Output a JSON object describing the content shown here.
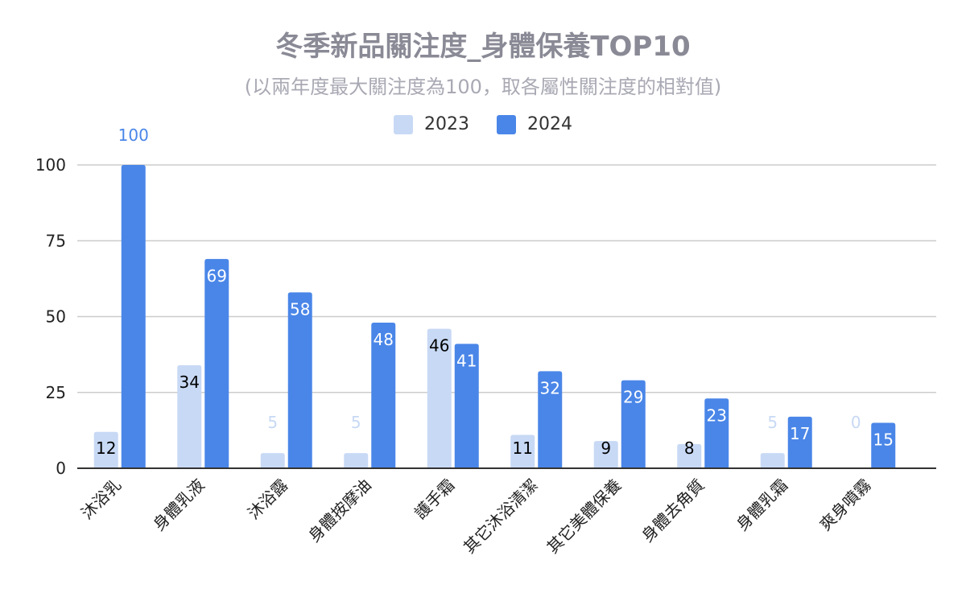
{
  "colors": {
    "y2023": "#c8d9f5",
    "y2024": "#4a86e8",
    "grid": "#cccccc",
    "axis": "#333333"
  },
  "chart_data": {
    "type": "bar",
    "title": "冬季新品關注度_身體保養TOP10",
    "subtitle": "(以兩年度最大關注度為100，取各屬性關注度的相對值)",
    "categories": [
      "沐浴乳",
      "身體乳液",
      "沐浴露",
      "身體按摩油",
      "護手霜",
      "其它沐浴清潔",
      "其它美體保養",
      "身體去角質",
      "身體乳霜",
      "爽身噴霧"
    ],
    "series": [
      {
        "name": "2023",
        "values": [
          12,
          34,
          5,
          5,
          46,
          11,
          9,
          8,
          5,
          0
        ]
      },
      {
        "name": "2024",
        "values": [
          100,
          69,
          58,
          48,
          41,
          32,
          29,
          23,
          17,
          15
        ]
      }
    ],
    "yticks": [
      "0",
      "25",
      "50",
      "75",
      "100"
    ],
    "ylim": [
      0,
      100
    ],
    "grid": true,
    "legend": "top-center"
  }
}
